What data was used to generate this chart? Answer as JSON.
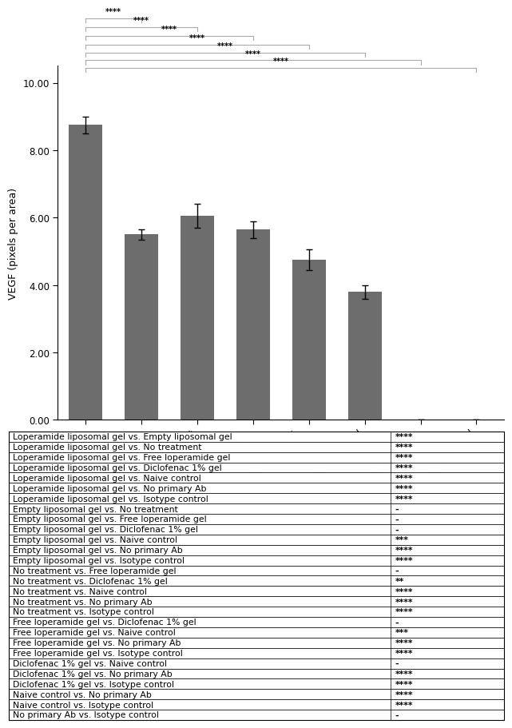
{
  "categories": [
    "Loperamide\nliposomal gel",
    "Empty\nliposomal gel",
    "No treatment",
    "Free\nloperamide gel",
    "Diclofenac 1%\ngel",
    "Naive control",
    "No primary Ab",
    "Isotype control"
  ],
  "values": [
    8.75,
    5.5,
    6.05,
    5.65,
    4.75,
    3.8,
    0,
    0
  ],
  "errors": [
    0.25,
    0.15,
    0.35,
    0.25,
    0.3,
    0.2,
    0,
    0
  ],
  "bar_color": "#6d6d6d",
  "ylabel": "VEGF (pixels per area)",
  "yticks": [
    0.0,
    2.0,
    4.0,
    6.0,
    8.0,
    10.0
  ],
  "sig_lines": [
    [
      0,
      1,
      0,
      "****"
    ],
    [
      0,
      2,
      1,
      "****"
    ],
    [
      0,
      3,
      2,
      "****"
    ],
    [
      0,
      4,
      3,
      "****"
    ],
    [
      0,
      5,
      4,
      "****"
    ],
    [
      0,
      6,
      5,
      "****"
    ],
    [
      0,
      7,
      6,
      "****"
    ]
  ],
  "table_rows": [
    [
      "Loperamide liposomal gel vs. Empty liposomal gel",
      "****"
    ],
    [
      "Loperamide liposomal gel vs. No treatment",
      "****"
    ],
    [
      "Loperamide liposomal gel vs. Free loperamide gel",
      "****"
    ],
    [
      "Loperamide liposomal gel vs. Diclofenac 1% gel",
      "****"
    ],
    [
      "Loperamide liposomal gel vs. Naive control",
      "****"
    ],
    [
      "Loperamide liposomal gel vs. No primary Ab",
      "****"
    ],
    [
      "Loperamide liposomal gel vs. Isotype control",
      "****"
    ],
    [
      "Empty liposomal gel vs. No treatment",
      "-"
    ],
    [
      "Empty liposomal gel vs. Free loperamide gel",
      "-"
    ],
    [
      "Empty liposomal gel vs. Diclofenac 1% gel",
      "-"
    ],
    [
      "Empty liposomal gel vs. Naive control",
      "***"
    ],
    [
      "Empty liposomal gel vs. No primary Ab",
      "****"
    ],
    [
      "Empty liposomal gel vs. Isotype control",
      "****"
    ],
    [
      "No treatment vs. Free loperamide gel",
      "-"
    ],
    [
      "No treatment vs. Diclofenac 1% gel",
      "**"
    ],
    [
      "No treatment vs. Naive control",
      "****"
    ],
    [
      "No treatment vs. No primary Ab",
      "****"
    ],
    [
      "No treatment vs. Isotype control",
      "****"
    ],
    [
      "Free loperamide gel vs. Diclofenac 1% gel",
      "-"
    ],
    [
      "Free loperamide gel vs. Naive control",
      "***"
    ],
    [
      "Free loperamide gel vs. No primary Ab",
      "****"
    ],
    [
      "Free loperamide gel vs. Isotype control",
      "****"
    ],
    [
      "Diclofenac 1% gel vs. Naive control",
      "-"
    ],
    [
      "Diclofenac 1% gel vs. No primary Ab",
      "****"
    ],
    [
      "Diclofenac 1% gel vs. Isotype control",
      "****"
    ],
    [
      "Naive control vs. No primary Ab",
      "****"
    ],
    [
      "Naive control vs. Isotype control",
      "****"
    ],
    [
      "No primary Ab vs. Isotype control",
      "-"
    ]
  ],
  "col_split": 0.77
}
